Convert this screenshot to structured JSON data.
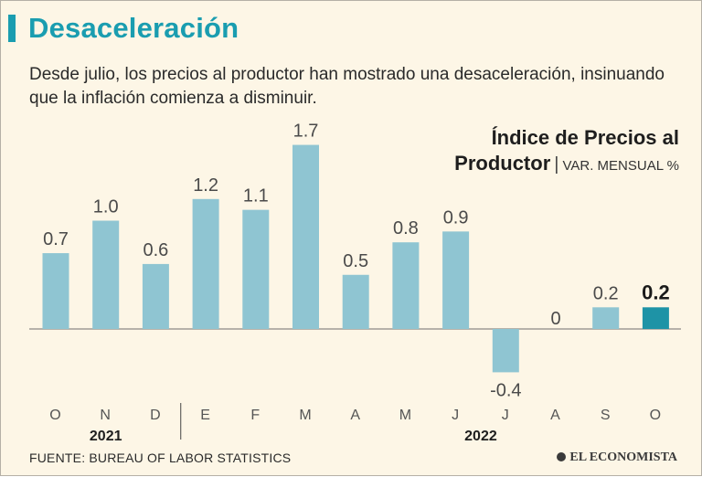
{
  "header": {
    "title": "Desaceleración",
    "subtitle": "Desde julio, los precios al productor han mostrado una desaceleración, insinuando que la inflación comienza a disminuir."
  },
  "legend": {
    "line1": "Índice de Precios al",
    "line2_bold": "Productor",
    "separator": "|",
    "unit": "VAR. MENSUAL %"
  },
  "footer": {
    "source": "FUENTE: BUREAU OF LABOR STATISTICS",
    "logo": "EL ECONOMISTA"
  },
  "colors": {
    "bar": "#8fc5d2",
    "highlight": "#1e93a6",
    "accent": "#1a9db0"
  },
  "chart_data": {
    "type": "bar",
    "title": "Índice de Precios al Productor",
    "ylabel": "VAR. MENSUAL %",
    "categories": [
      "O",
      "N",
      "D",
      "E",
      "F",
      "M",
      "A",
      "M",
      "J",
      "J",
      "A",
      "S",
      "O"
    ],
    "values": [
      0.7,
      1.0,
      0.6,
      1.2,
      1.1,
      1.7,
      0.5,
      0.8,
      0.9,
      -0.4,
      0,
      0.2,
      0.2
    ],
    "value_labels": [
      "0.7",
      "1.0",
      "0.6",
      "1.2",
      "1.1",
      "1.7",
      "0.5",
      "0.8",
      "0.9",
      "-0.4",
      "0",
      "0.2",
      "0.2"
    ],
    "highlight_index": 12,
    "year_groups": [
      {
        "label": "2021",
        "start": 0,
        "end": 2
      },
      {
        "label": "2022",
        "start": 3,
        "end": 12
      }
    ],
    "ylim": [
      -0.4,
      1.7
    ],
    "grid": false
  }
}
